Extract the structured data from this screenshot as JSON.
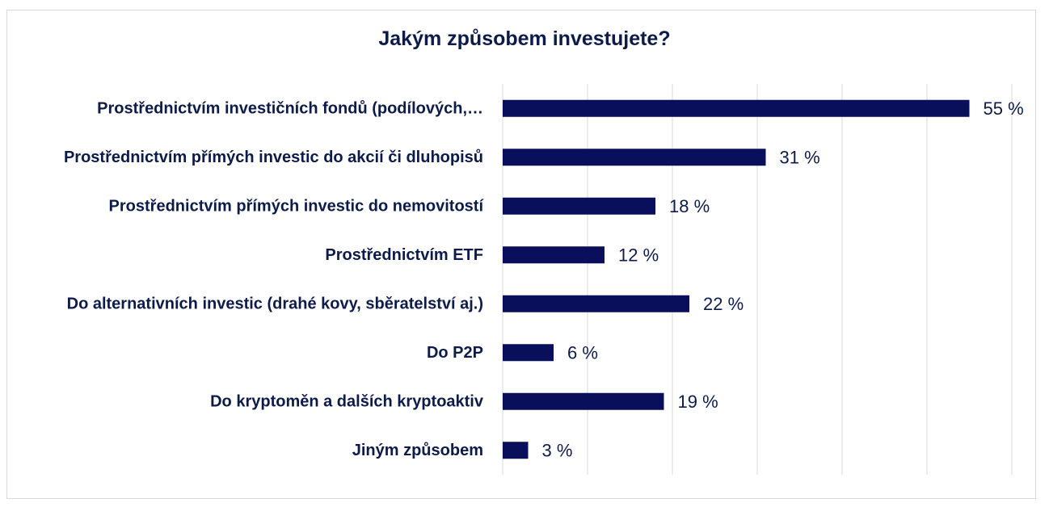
{
  "chart_data": {
    "type": "bar",
    "orientation": "horizontal",
    "title": "Jakým způsobem investujete?",
    "categories": [
      "Prostřednictvím investičních fondů (podílových,…",
      "Prostřednictvím přímých investic do akcií či dluhopisů",
      "Prostřednictvím přímých investic do nemovitostí",
      "Prostřednictvím ETF",
      "Do alternativních investic (drahé kovy, sběratelství aj.)",
      "Do P2P",
      "Do kryptoměn a dalších kryptoaktiv",
      "Jiným způsobem"
    ],
    "values": [
      55,
      31,
      18,
      12,
      22,
      6,
      19,
      3
    ],
    "value_labels": [
      "55 %",
      "31 %",
      "18 %",
      "12 %",
      "22 %",
      "6 %",
      "19 %",
      "3 %"
    ],
    "xlim": [
      0,
      60
    ],
    "grid": true,
    "bar_color": "#0a0f5c",
    "label_color": "#0d1b4a"
  }
}
